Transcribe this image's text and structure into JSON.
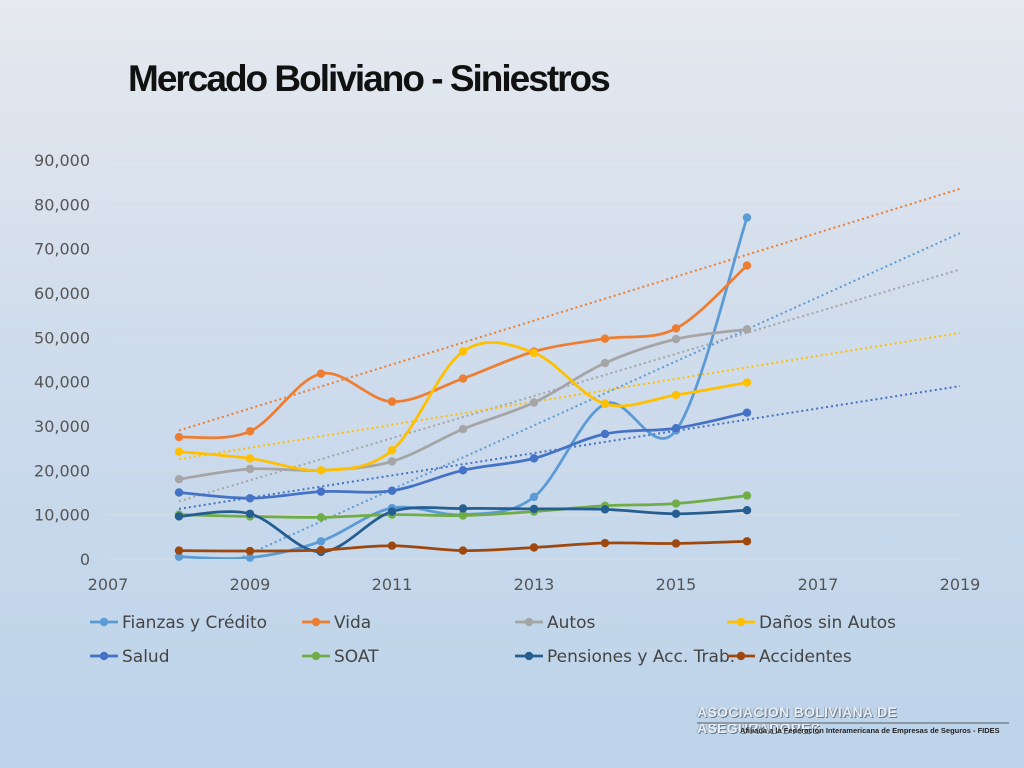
{
  "slide": {
    "title": "Mercado Boliviano - Siniestros",
    "footer_org": "ASOCIACION BOLIVIANA DE ASEGURADORES",
    "footer_sub": "Afiliada a la Federación Interamericana de Empresas de Seguros - FIDES"
  },
  "chart_data": {
    "type": "line",
    "smooth": true,
    "xlim": [
      2007,
      2019
    ],
    "ylim": [
      0,
      90000
    ],
    "x_ticks": [
      2007,
      2009,
      2011,
      2013,
      2015,
      2017,
      2019
    ],
    "x_tick_labels": [
      "2007",
      "2009",
      "2011",
      "2013",
      "2015",
      "2017",
      "2019"
    ],
    "y_ticks": [
      0,
      10000,
      20000,
      30000,
      40000,
      50000,
      60000,
      70000,
      80000,
      90000
    ],
    "y_tick_labels": [
      "0",
      "10,000",
      "20,000",
      "30,000",
      "40,000",
      "50,000",
      "60,000",
      "70,000",
      "80,000",
      "90,000"
    ],
    "grid": "horizontal",
    "legend_position": "bottom",
    "x": [
      2008,
      2009,
      2010,
      2011,
      2012,
      2013,
      2014,
      2015,
      2016
    ],
    "series": [
      {
        "name": "Fianzas y Crédito",
        "color": "#5b9bd5",
        "values": [
          500,
          300,
          4000,
          11500,
          10000,
          14000,
          35000,
          29000,
          77000
        ],
        "trendline": [
          -6000,
          73500
        ]
      },
      {
        "name": "Vida",
        "color": "#ed7d31",
        "values": [
          27500,
          28800,
          41800,
          35500,
          40700,
          46800,
          49700,
          52000,
          66200
        ],
        "trendline": [
          29000,
          83500
        ]
      },
      {
        "name": "Autos",
        "color": "#a5a5a5",
        "values": [
          18000,
          20300,
          20000,
          22000,
          29300,
          35300,
          44200,
          49600,
          51800
        ],
        "trendline": [
          13000,
          65300
        ]
      },
      {
        "name": "Daños sin Autos",
        "color": "#ffc000",
        "values": [
          24200,
          22700,
          20000,
          24500,
          46800,
          46500,
          35000,
          37000,
          39800
        ],
        "trendline": [
          22500,
          51000
        ]
      },
      {
        "name": "Salud",
        "color": "#4472c4",
        "values": [
          15000,
          13700,
          15200,
          15400,
          20000,
          22700,
          28200,
          29500,
          33000
        ],
        "trendline": [
          11300,
          39000
        ]
      },
      {
        "name": "SOAT",
        "color": "#70ad47",
        "values": [
          10000,
          9600,
          9400,
          10000,
          9800,
          10700,
          12000,
          12500,
          14300
        ],
        "trendline": null
      },
      {
        "name": "Pensiones y Acc. Trab.",
        "color": "#255e91",
        "values": [
          9600,
          10200,
          1600,
          10700,
          11400,
          11300,
          11200,
          10200,
          11000
        ],
        "trendline": null
      },
      {
        "name": "Accidentes",
        "color": "#9e480e",
        "values": [
          1900,
          1800,
          2000,
          3000,
          1900,
          2600,
          3600,
          3500,
          4000
        ],
        "trendline": null
      }
    ]
  }
}
